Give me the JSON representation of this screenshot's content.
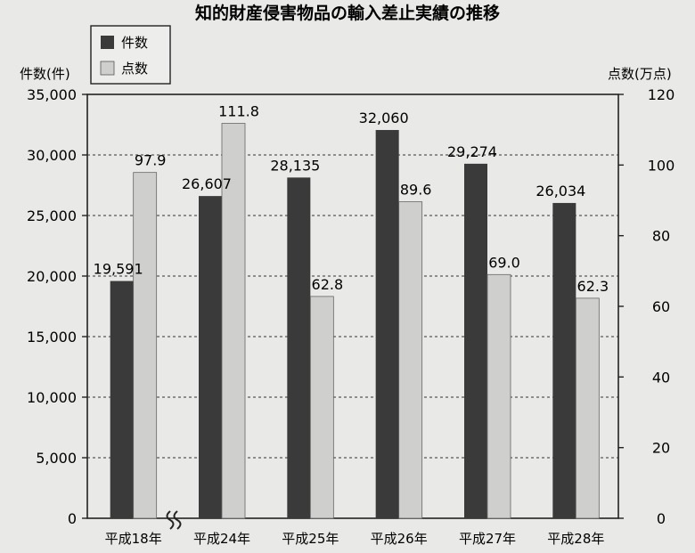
{
  "chart_data": {
    "type": "bar",
    "title": "知的財産侵害物品の輸入差止実績の推移",
    "categories": [
      "平成18年",
      "平成24年",
      "平成25年",
      "平成26年",
      "平成27年",
      "平成28年"
    ],
    "series": [
      {
        "name": "件数",
        "axis": "left",
        "color": "#3a3a3a",
        "values": [
          19591,
          26607,
          28135,
          32060,
          29274,
          26034
        ],
        "labels": [
          "19,591",
          "26,607",
          "28,135",
          "32,060",
          "29,274",
          "26,034"
        ]
      },
      {
        "name": "点数",
        "axis": "right",
        "color": "#cfcfcd",
        "values": [
          97.9,
          111.8,
          62.8,
          89.6,
          69.0,
          62.3
        ],
        "labels": [
          "97.9",
          "111.8",
          "62.8",
          "89.6",
          "69.0",
          "62.3"
        ]
      }
    ],
    "ylabel_left": "件数(件)",
    "ylabel_right": "点数(万点)",
    "ylim_left": [
      0,
      35000
    ],
    "ylim_right": [
      0,
      120
    ],
    "yticks_left": [
      "0",
      "5,000",
      "10,000",
      "15,000",
      "20,000",
      "25,000",
      "30,000",
      "35,000"
    ],
    "yticks_right": [
      "0",
      "20",
      "40",
      "60",
      "80",
      "100",
      "120"
    ],
    "grid": "dashed horizontal",
    "axis_break": "between 平成18年 and 平成24年",
    "legend_position": "top-left"
  }
}
